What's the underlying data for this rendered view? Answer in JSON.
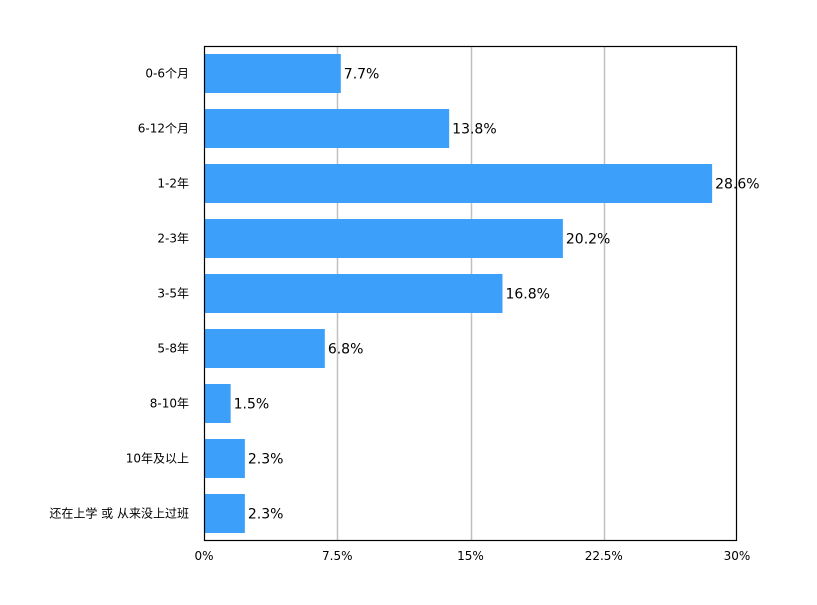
{
  "chart_data": {
    "type": "bar",
    "orientation": "horizontal",
    "title": "",
    "xlabel": "",
    "ylabel": "",
    "categories": [
      "0-6个月",
      "6-12个月",
      "1-2年",
      "2-3年",
      "3-5年",
      "5-8年",
      "8-10年",
      "10年及以上",
      "还在上学 或 从来没上过班"
    ],
    "values": [
      7.7,
      13.8,
      28.6,
      20.2,
      16.8,
      6.8,
      1.5,
      2.3,
      2.3
    ],
    "data_labels": [
      "7.7%",
      "13.8%",
      "28.6%",
      "20.2%",
      "16.8%",
      "6.8%",
      "1.5%",
      "2.3%",
      "2.3%"
    ],
    "xlim": [
      0,
      30
    ],
    "x_ticks": [
      0,
      7.5,
      15,
      22.5,
      30
    ],
    "x_tick_labels": [
      "0%",
      "7.5%",
      "15%",
      "22.5%",
      "30%"
    ],
    "grid": "vertical",
    "legend": "none",
    "bar_color": "#3ca0fa",
    "grid_color": "#c0c0c0",
    "frame_color": "#000000"
  }
}
